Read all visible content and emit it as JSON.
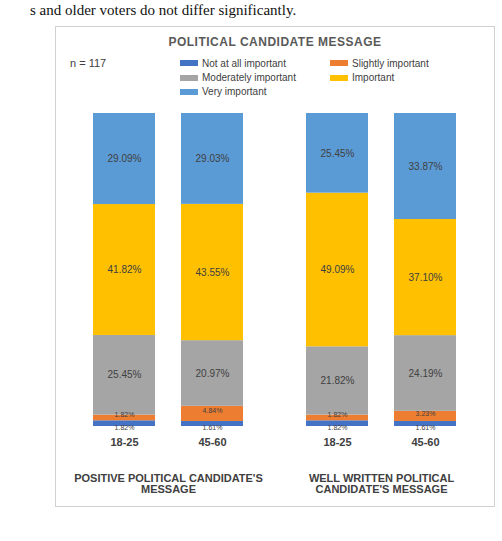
{
  "page_header": "s and older voters do not differ significantly.",
  "chart_data": {
    "type": "bar",
    "title": "POLITICAL CANDIDATE MESSAGE",
    "annotations": [
      "n = 117"
    ],
    "categories": [
      "18-25",
      "45-60",
      "18-25",
      "45-60"
    ],
    "groups": [
      "POSITIVE POLITICAL CANDIDATE'S MESSAGE",
      "POSITIVE POLITICAL CANDIDATE'S MESSAGE",
      "WELL WRITTEN POLITICAL CANDIDATE'S MESSAGE",
      "WELL WRITTEN POLITICAL CANDIDATE'S MESSAGE"
    ],
    "stacked": true,
    "data_labels": true,
    "tick_labels": "x",
    "legend": "top",
    "series": [
      {
        "name": "Not at all important",
        "color": "#4472c4",
        "values": [
          1.82,
          1.61,
          1.82,
          1.61
        ],
        "value_labels": [
          "1.82%",
          "1.61%",
          "1.82%",
          "1.61%"
        ]
      },
      {
        "name": "Slightly important",
        "color": "#ed7d31",
        "values": [
          1.82,
          4.84,
          1.82,
          3.23
        ],
        "value_labels": [
          "1.82%",
          "4.84%",
          "1.82%",
          "3.23%"
        ]
      },
      {
        "name": "Moderately important",
        "color": "#a5a5a5",
        "values": [
          25.45,
          20.97,
          21.82,
          24.19
        ],
        "value_labels": [
          "25.45%",
          "20.97%",
          "21.82%",
          "24.19%"
        ]
      },
      {
        "name": "Important",
        "color": "#ffc000",
        "values": [
          41.82,
          43.55,
          49.09,
          37.1
        ],
        "value_labels": [
          "41.82%",
          "43.55%",
          "49.09%",
          "37.10%"
        ]
      },
      {
        "name": "Very important",
        "color": "#5b9bd5",
        "values": [
          29.09,
          29.03,
          25.45,
          33.87
        ],
        "value_labels": [
          "29.09%",
          "29.03%",
          "25.45%",
          "33.87%"
        ]
      }
    ]
  }
}
